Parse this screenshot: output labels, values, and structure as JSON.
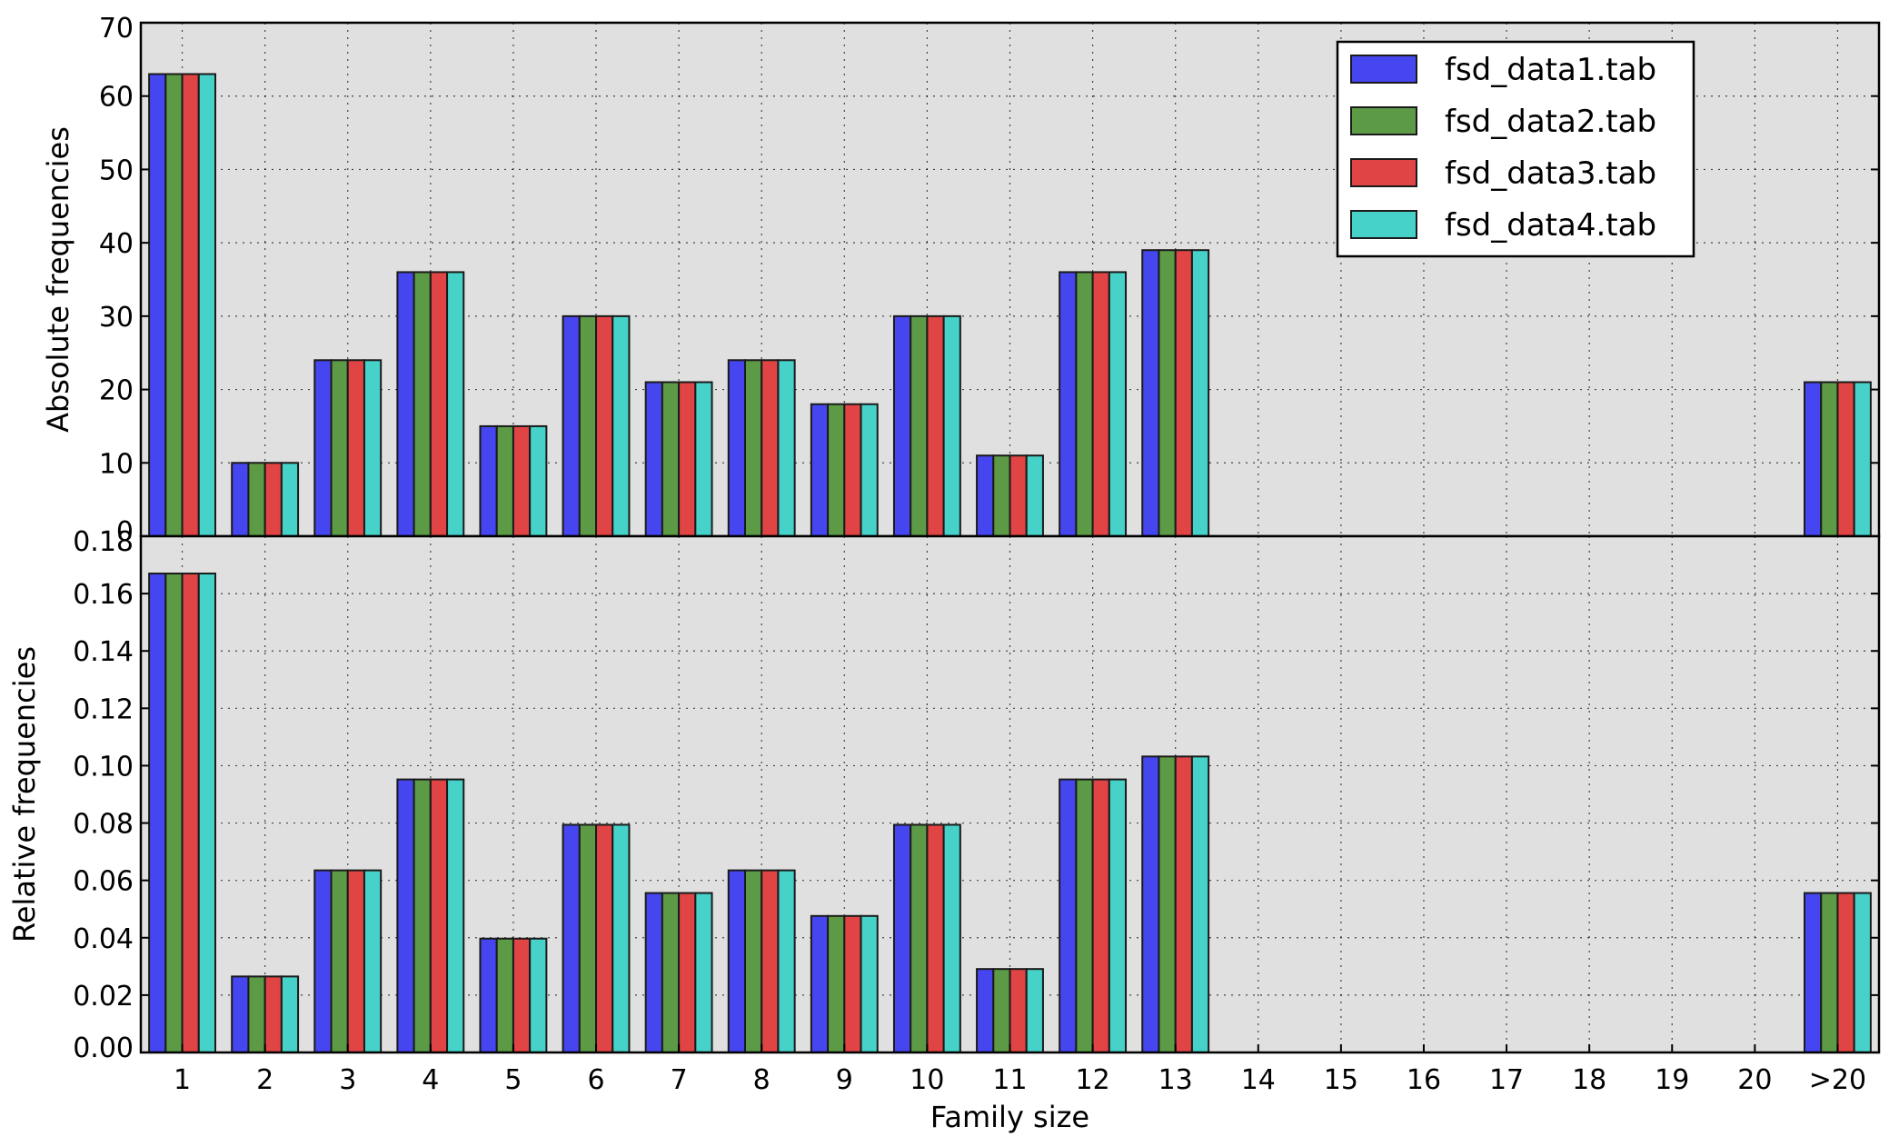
{
  "chart_data": {
    "type": "bar",
    "xlabel": "Family size",
    "categories": [
      "1",
      "2",
      "3",
      "4",
      "5",
      "6",
      "7",
      "8",
      "9",
      "10",
      "11",
      "12",
      "13",
      "14",
      "15",
      "16",
      "17",
      "18",
      "19",
      "20",
      ">20"
    ],
    "legend": {
      "placement": "top-right",
      "entries": [
        "fsd_data1.tab",
        "fsd_data2.tab",
        "fsd_data3.tab",
        "fsd_data4.tab"
      ]
    },
    "series_colors": [
      "#4646f0",
      "#5c9a46",
      "#e04444",
      "#46d2c8"
    ],
    "plot_background": "#e0e0e0",
    "grid": true,
    "panels": [
      {
        "ylabel": "Absolute frequencies",
        "ylim": [
          0,
          70
        ],
        "yticks": [
          0,
          10,
          20,
          30,
          40,
          50,
          60,
          70
        ],
        "tick_labels": [
          "0",
          "10",
          "20",
          "30",
          "40",
          "50",
          "60",
          "70"
        ],
        "series": [
          {
            "name": "fsd_data1.tab",
            "values": [
              63,
              10,
              24,
              36,
              15,
              30,
              21,
              24,
              18,
              30,
              11,
              36,
              39,
              0,
              0,
              0,
              0,
              0,
              0,
              0,
              21
            ]
          },
          {
            "name": "fsd_data2.tab",
            "values": [
              63,
              10,
              24,
              36,
              15,
              30,
              21,
              24,
              18,
              30,
              11,
              36,
              39,
              0,
              0,
              0,
              0,
              0,
              0,
              0,
              21
            ]
          },
          {
            "name": "fsd_data3.tab",
            "values": [
              63,
              10,
              24,
              36,
              15,
              30,
              21,
              24,
              18,
              30,
              11,
              36,
              39,
              0,
              0,
              0,
              0,
              0,
              0,
              0,
              21
            ]
          },
          {
            "name": "fsd_data4.tab",
            "values": [
              63,
              10,
              24,
              36,
              15,
              30,
              21,
              24,
              18,
              30,
              11,
              36,
              39,
              0,
              0,
              0,
              0,
              0,
              0,
              0,
              21
            ]
          }
        ]
      },
      {
        "ylabel": "Relative frequencies",
        "ylim": [
          0,
          0.18
        ],
        "yticks": [
          0,
          0.02,
          0.04,
          0.06,
          0.08,
          0.1,
          0.12,
          0.14,
          0.16,
          0.18
        ],
        "tick_labels": [
          "0.00",
          "0.02",
          "0.04",
          "0.06",
          "0.08",
          "0.10",
          "0.12",
          "0.14",
          "0.16",
          "0.18"
        ],
        "series": [
          {
            "name": "fsd_data1.tab",
            "values": [
              0.167,
              0.0265,
              0.0635,
              0.0952,
              0.0397,
              0.0794,
              0.0556,
              0.0635,
              0.0476,
              0.0794,
              0.0291,
              0.0952,
              0.1032,
              0,
              0,
              0,
              0,
              0,
              0,
              0,
              0.0556
            ]
          },
          {
            "name": "fsd_data2.tab",
            "values": [
              0.167,
              0.0265,
              0.0635,
              0.0952,
              0.0397,
              0.0794,
              0.0556,
              0.0635,
              0.0476,
              0.0794,
              0.0291,
              0.0952,
              0.1032,
              0,
              0,
              0,
              0,
              0,
              0,
              0,
              0.0556
            ]
          },
          {
            "name": "fsd_data3.tab",
            "values": [
              0.167,
              0.0265,
              0.0635,
              0.0952,
              0.0397,
              0.0794,
              0.0556,
              0.0635,
              0.0476,
              0.0794,
              0.0291,
              0.0952,
              0.1032,
              0,
              0,
              0,
              0,
              0,
              0,
              0,
              0.0556
            ]
          },
          {
            "name": "fsd_data4.tab",
            "values": [
              0.167,
              0.0265,
              0.0635,
              0.0952,
              0.0397,
              0.0794,
              0.0556,
              0.0635,
              0.0476,
              0.0794,
              0.0291,
              0.0952,
              0.1032,
              0,
              0,
              0,
              0,
              0,
              0,
              0,
              0.0556
            ]
          }
        ]
      }
    ]
  }
}
